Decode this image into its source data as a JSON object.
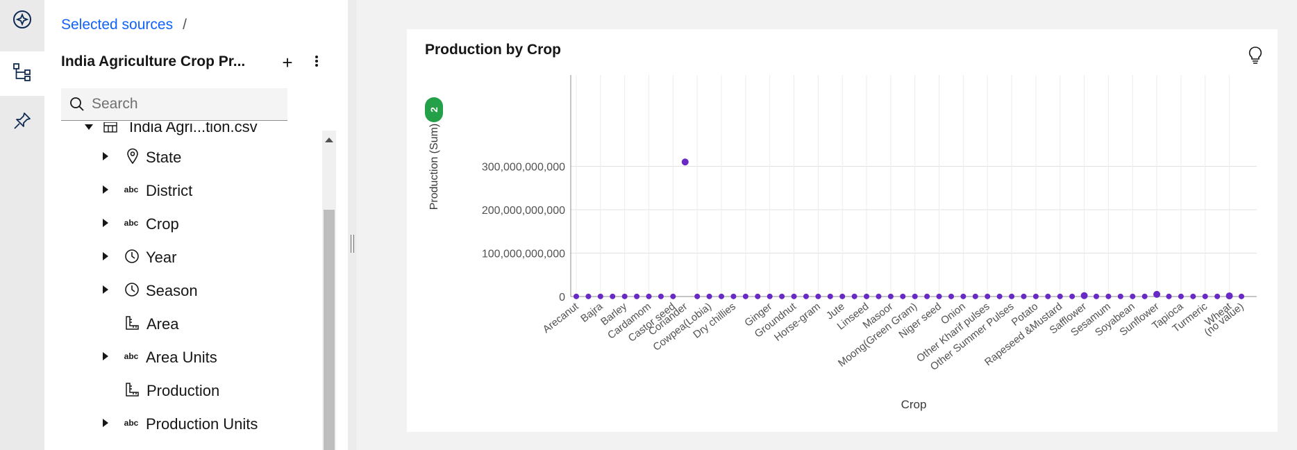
{
  "rail": {
    "items": [
      {
        "icon": "assistant-icon",
        "active": false
      },
      {
        "icon": "data-tree-icon",
        "active": true
      },
      {
        "icon": "pin-icon",
        "active": false
      }
    ]
  },
  "panel": {
    "breadcrumb": {
      "link": "Selected sources",
      "separator": "/"
    },
    "source_title": "India Agriculture Crop Pr...",
    "add_label": "+",
    "search": {
      "placeholder": "Search",
      "value": ""
    },
    "tree": {
      "file": "India Agri...tion.csv",
      "fields": [
        {
          "label": "State",
          "type": "geo",
          "expandable": true
        },
        {
          "label": "District",
          "type": "text",
          "expandable": true
        },
        {
          "label": "Crop",
          "type": "text",
          "expandable": true
        },
        {
          "label": "Year",
          "type": "time",
          "expandable": true
        },
        {
          "label": "Season",
          "type": "time",
          "expandable": true
        },
        {
          "label": "Area",
          "type": "measure",
          "expandable": false
        },
        {
          "label": "Area Units",
          "type": "text",
          "expandable": true
        },
        {
          "label": "Production",
          "type": "measure",
          "expandable": false
        },
        {
          "label": "Production Units",
          "type": "text",
          "expandable": true
        }
      ],
      "abc_label": "abc"
    }
  },
  "card": {
    "title": "Production by Crop",
    "badge": "2"
  },
  "chart_data": {
    "type": "scatter",
    "title": "Production by Crop",
    "xlabel": "Crop",
    "ylabel": "Production (Sum)",
    "ylim": [
      0,
      330000000000
    ],
    "yticks": [
      "0",
      "100,000,000,000",
      "200,000,000,000",
      "300,000,000,000"
    ],
    "ytick_values": [
      0,
      100000000000,
      200000000000,
      300000000000
    ],
    "grid": true,
    "color": "#6929c4",
    "x_labels": [
      "Arecanut",
      "Bajra",
      "Barley",
      "Cardamom",
      "Castor seed",
      "Coriander",
      "Cowpea(Lobia)",
      "Dry chillies",
      "Ginger",
      "Groundnut",
      "Horse-gram",
      "Jute",
      "Linseed",
      "Masoor",
      "Moong(Green Gram)",
      "Niger seed",
      "Onion",
      "Other Kharif pulses",
      "Other Summer Pulses",
      "Potato",
      "Rapeseed &Mustard",
      "Safflower",
      "Sesamum",
      "Soyabean",
      "Sunflower",
      "Tapioca",
      "Turmeric",
      "Wheat",
      "(no value)"
    ],
    "values": [
      300000000,
      300000000,
      300000000,
      300000000,
      300000000,
      300000000,
      300000000,
      300000000,
      300000000,
      300000000,
      300000000,
      300000000,
      300000000,
      300000000,
      300000000,
      300000000,
      300000000,
      300000000,
      300000000,
      300000000,
      300000000,
      300000000,
      300000000,
      300000000,
      300000000,
      300000000,
      300000000,
      300000000,
      300000000,
      310000000000,
      300000000,
      300000000,
      300000000,
      300000000,
      300000000,
      300000000,
      300000000,
      300000000,
      300000000,
      300000000,
      300000000,
      300000000,
      300000000,
      300000000,
      300000000,
      300000000,
      300000000,
      300000000,
      300000000,
      300000000,
      300000000,
      300000000,
      300000000,
      300000000,
      300000000,
      300000000,
      300000000,
      300000000,
      300000000,
      300000000,
      300000000,
      300000000,
      300000000,
      300000000,
      300000000,
      300000000,
      300000000,
      300000000,
      300000000,
      300000000,
      300000000,
      300000000,
      300000000,
      300000000,
      300000000,
      300000000,
      300000000,
      300000000,
      300000000,
      300000000,
      300000000,
      300000000,
      300000000,
      300000000,
      300000000,
      300000000,
      300000000,
      300000000,
      300000000,
      300000000,
      300000000,
      300000000,
      300000000,
      300000000,
      300000000,
      300000000,
      300000000,
      300000000,
      300000000,
      300000000,
      300000000,
      300000000,
      300000000,
      300000000,
      300000000,
      300000000,
      300000000,
      300000000,
      300000000,
      300000000,
      300000000,
      300000000,
      300000000,
      300000000,
      300000000,
      300000000,
      300000000,
      300000000,
      300000000,
      300000000,
      300000000,
      300000000,
      300000000,
      300000000,
      300000000,
      300000000,
      300000000,
      300000000,
      300000000,
      300000000,
      300000000,
      300000000,
      300000000,
      300000000,
      300000000,
      300000000,
      300000000,
      300000000,
      300000000,
      300000000,
      300000000,
      300000000,
      300000000,
      300000000,
      300000000,
      300000000,
      300000000,
      300000000,
      300000000,
      300000000,
      300000000,
      300000000,
      300000000,
      300000000,
      300000000,
      300000000,
      300000000,
      300000000,
      300000000,
      300000000,
      300000000,
      300000000,
      300000000,
      300000000,
      300000000,
      300000000,
      300000000,
      300000000,
      300000000,
      300000000,
      300000000,
      300000000,
      300000000,
      300000000,
      300000000,
      300000000,
      300000000,
      300000000,
      300000000,
      300000000,
      300000000,
      300000000,
      300000000,
      300000000,
      300000000,
      300000000,
      300000000,
      300000000,
      300000000,
      300000000,
      300000000,
      300000000,
      300000000,
      300000000,
      300000000,
      300000000,
      300000000,
      300000000,
      300000000,
      300000000,
      300000000,
      300000000,
      300000000,
      300000000,
      300000000,
      300000000,
      300000000,
      300000000,
      300000000,
      300000000,
      300000000,
      300000000,
      300000000,
      300000000,
      300000000,
      300000000,
      300000000,
      300000000,
      300000000,
      300000000,
      300000000,
      300000000,
      300000000,
      300000000,
      300000000,
      300000000,
      300000000,
      300000000,
      300000000,
      300000000,
      300000000,
      300000000,
      300000000,
      300000000,
      300000000,
      300000000,
      300000000,
      300000000,
      300000000,
      300000000,
      300000000,
      300000000,
      300000000,
      300000000,
      300000000,
      300000000,
      300000000,
      300000000,
      300000000,
      300000000,
      300000000,
      300000000,
      300000000,
      300000000,
      300000000,
      300000000,
      300000000,
      300000000,
      300000000,
      300000000,
      300000000,
      300000000,
      300000000,
      300000000,
      300000000,
      300000000,
      300000000,
      300000000,
      300000000,
      300000000,
      300000000,
      300000000,
      300000000,
      300000000,
      300000000,
      300000000,
      300000000,
      300000000,
      300000000,
      300000000,
      300000000,
      300000000,
      300000000,
      300000000,
      300000000,
      300000000,
      300000000,
      300000000,
      300000000,
      300000000,
      300000000,
      300000000,
      300000000,
      300000000,
      300000000,
      300000000,
      300000000,
      300000000,
      300000000,
      300000000,
      300000000,
      300000000,
      300000000,
      300000000,
      300000000,
      300000000,
      300000000,
      300000000,
      300000000,
      300000000,
      300000000,
      300000000,
      300000000,
      300000000,
      300000000,
      300000000,
      300000000,
      300000000,
      300000000,
      300000000,
      300000000,
      300000000,
      300000000,
      300000000,
      300000000,
      300000000
    ],
    "points": [
      {
        "crop": "Arecanut",
        "value": 300000000
      },
      {
        "crop": "",
        "value": 300000000
      },
      {
        "crop": "Bajra",
        "value": 300000000
      },
      {
        "crop": "",
        "value": 300000000
      },
      {
        "crop": "Barley",
        "value": 300000000
      },
      {
        "crop": "",
        "value": 300000000
      },
      {
        "crop": "Cardamom",
        "value": 300000000
      },
      {
        "crop": "",
        "value": 300000000
      },
      {
        "crop": "Castor seed",
        "value": 300000000
      },
      {
        "crop": "Coriander",
        "value": 310000000000
      },
      {
        "crop": "",
        "value": 300000000
      },
      {
        "crop": "Cowpea(Lobia)",
        "value": 300000000
      },
      {
        "crop": "",
        "value": 300000000
      },
      {
        "crop": "Dry chillies",
        "value": 300000000
      },
      {
        "crop": "",
        "value": 300000000
      },
      {
        "crop": "",
        "value": 300000000
      },
      {
        "crop": "Ginger",
        "value": 300000000
      },
      {
        "crop": "",
        "value": 300000000
      },
      {
        "crop": "Groundnut",
        "value": 300000000
      },
      {
        "crop": "",
        "value": 300000000
      },
      {
        "crop": "Horse-gram",
        "value": 300000000
      },
      {
        "crop": "",
        "value": 300000000
      },
      {
        "crop": "Jute",
        "value": 300000000
      },
      {
        "crop": "",
        "value": 300000000
      },
      {
        "crop": "Linseed",
        "value": 300000000
      },
      {
        "crop": "",
        "value": 300000000
      },
      {
        "crop": "Masoor",
        "value": 300000000
      },
      {
        "crop": "",
        "value": 300000000
      },
      {
        "crop": "Moong(Green Gram)",
        "value": 300000000
      },
      {
        "crop": "",
        "value": 300000000
      },
      {
        "crop": "Niger seed",
        "value": 300000000
      },
      {
        "crop": "",
        "value": 300000000
      },
      {
        "crop": "Onion",
        "value": 300000000
      },
      {
        "crop": "",
        "value": 300000000
      },
      {
        "crop": "Other Kharif pulses",
        "value": 300000000
      },
      {
        "crop": "",
        "value": 300000000
      },
      {
        "crop": "Other Summer Pulses",
        "value": 300000000
      },
      {
        "crop": "",
        "value": 300000000
      },
      {
        "crop": "Potato",
        "value": 300000000
      },
      {
        "crop": "",
        "value": 300000000
      },
      {
        "crop": "Rapeseed &Mustard",
        "value": 300000000
      },
      {
        "crop": "",
        "value": 300000000
      },
      {
        "crop": "Safflower",
        "value": 2000000000
      },
      {
        "crop": "",
        "value": 300000000
      },
      {
        "crop": "Sesamum",
        "value": 300000000
      },
      {
        "crop": "",
        "value": 300000000
      },
      {
        "crop": "Soyabean",
        "value": 300000000
      },
      {
        "crop": "",
        "value": 300000000
      },
      {
        "crop": "Sunflower",
        "value": 5000000000
      },
      {
        "crop": "",
        "value": 300000000
      },
      {
        "crop": "Tapioca",
        "value": 300000000
      },
      {
        "crop": "",
        "value": 300000000
      },
      {
        "crop": "Turmeric",
        "value": 300000000
      },
      {
        "crop": "",
        "value": 300000000
      },
      {
        "crop": "Wheat",
        "value": 1500000000
      },
      {
        "crop": "(no value)",
        "value": 300000000
      }
    ]
  }
}
